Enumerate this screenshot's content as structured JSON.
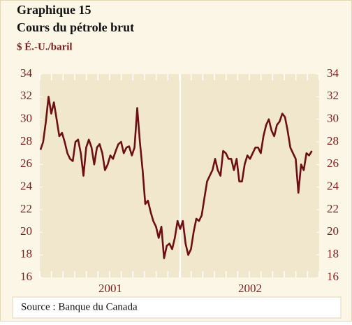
{
  "chart_data": {
    "type": "line",
    "title": "Graphique 15",
    "subtitle": "Cours du pétrole brut",
    "y_label": "$ É.-U./baril",
    "source": "Source : Banque du Canada",
    "categories": [
      null,
      null,
      null,
      null,
      null,
      null,
      null,
      null,
      null,
      null,
      null,
      null,
      null,
      null,
      null,
      null,
      null,
      null,
      null,
      null,
      null,
      null,
      null,
      null,
      null,
      null,
      "2001",
      null,
      null,
      null,
      null,
      null,
      null,
      null,
      null,
      null,
      null,
      null,
      null,
      null,
      null,
      null,
      null,
      null,
      null,
      null,
      null,
      null,
      null,
      null,
      null,
      null,
      null,
      null,
      null,
      null,
      null,
      null,
      null,
      null,
      null,
      null,
      null,
      null,
      null,
      null,
      null,
      null,
      null,
      null,
      null,
      null,
      null,
      null,
      null,
      null,
      null,
      null,
      "2002",
      null,
      null,
      null,
      null,
      null,
      null,
      null,
      null,
      null,
      null,
      null,
      null,
      null,
      null,
      null,
      null,
      null,
      null,
      null,
      null,
      null,
      null,
      null
    ],
    "series": [
      {
        "color": "#6b0f14",
        "values": [
          27.3,
          28,
          29.8,
          32,
          30.5,
          31.5,
          30,
          28.5,
          28.8,
          28,
          27,
          26.5,
          26.3,
          28,
          28.2,
          27,
          25,
          27.5,
          28.2,
          27.5,
          26,
          27.5,
          27.8,
          27,
          25.5,
          26,
          26.8,
          26.5,
          27.2,
          27.8,
          28,
          27,
          27.5,
          27.6,
          26.8,
          27.5,
          31,
          28,
          25.5,
          22.5,
          22.8,
          21.8,
          21,
          20.5,
          19.5,
          20.5,
          17.7,
          18.8,
          19,
          18.5,
          19.5,
          21,
          20.3,
          21,
          19,
          18,
          18.5,
          20,
          21.2,
          21,
          21.5,
          23,
          24.5,
          25,
          25.5,
          26.5,
          25.5,
          25,
          27.2,
          27,
          26.5,
          26.5,
          25.5,
          26.5,
          24.5,
          24.5,
          26,
          26.8,
          26.5,
          27,
          27.5,
          27.5,
          27,
          28.5,
          29.5,
          30,
          29,
          28.5,
          29.5,
          29.8,
          30.5,
          30.2,
          29,
          27.5,
          27,
          26.5,
          23.5,
          26,
          25.5,
          27,
          26.8,
          27.2
        ]
      }
    ],
    "ylim": [
      16,
      34
    ],
    "yticks": [
      16,
      18,
      20,
      22,
      24,
      26,
      28,
      30,
      32,
      34
    ],
    "y2lim": [
      16,
      34
    ],
    "y2ticks": [
      16,
      18,
      20,
      22,
      24,
      26,
      28,
      30,
      32,
      34
    ]
  }
}
